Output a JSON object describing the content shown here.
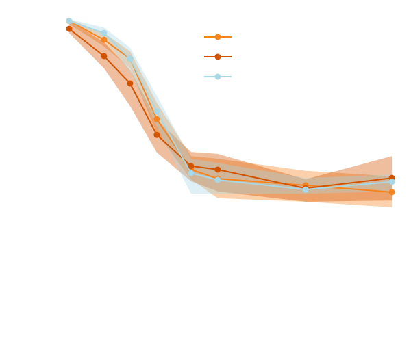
{
  "chart_data": {
    "type": "line",
    "x": [
      0.48,
      1.46,
      2.19,
      2.94,
      3.9,
      4.65,
      7.12,
      9.54
    ],
    "xlim": [
      0,
      10
    ],
    "ylim": [
      0,
      10
    ],
    "grid": false,
    "legend": "top",
    "series": [
      {
        "color": "#f5841f",
        "values": [
          9.77,
          9.19,
          8.6,
          6.72,
          5.15,
          4.87,
          4.66,
          4.45
        ],
        "upper": [
          9.83,
          9.4,
          8.83,
          7.23,
          5.57,
          5.49,
          5.11,
          4.94
        ],
        "lower": [
          9.68,
          8.98,
          8.3,
          6.28,
          4.85,
          4.26,
          4.15,
          3.98
        ]
      },
      {
        "color": "#d35400",
        "values": [
          9.53,
          8.68,
          7.83,
          6.23,
          5.26,
          5.15,
          4.57,
          4.89
        ],
        "upper": [
          9.79,
          9.11,
          8.26,
          6.7,
          5.7,
          5.64,
          4.85,
          5.57
        ],
        "lower": [
          9.4,
          8.3,
          7.13,
          5.68,
          4.79,
          4.47,
          4.15,
          4.19
        ]
      },
      {
        "color": "#a8d8e6",
        "values": [
          9.77,
          9.4,
          8.6,
          6.96,
          5.04,
          4.83,
          4.53,
          4.77
        ],
        "upper": [
          9.83,
          9.57,
          8.94,
          7.45,
          5.49,
          5.36,
          4.89,
          5.0
        ],
        "lower": [
          9.7,
          9.23,
          8.19,
          6.49,
          4.4,
          4.4,
          4.4,
          4.47
        ]
      }
    ]
  }
}
